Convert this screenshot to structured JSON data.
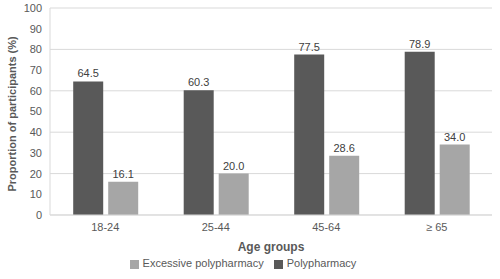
{
  "chart_data": {
    "type": "bar",
    "x_label": "Age groups",
    "y_label": "Proportion of participants (%)",
    "categories": [
      "18-24",
      "25-44",
      "45-64",
      "≥ 65"
    ],
    "series": [
      {
        "name": "Polypharmacy",
        "color": "#595959",
        "values": [
          64.5,
          60.3,
          77.5,
          78.9
        ]
      },
      {
        "name": "Excessive polypharmacy",
        "color": "#a6a6a6",
        "values": [
          16.1,
          20,
          28.6,
          34
        ],
        "value_labels": [
          "16.1",
          "20.0",
          "28.6",
          "34.0"
        ]
      }
    ],
    "ylim": [
      0,
      100
    ],
    "yticks": [
      0,
      10,
      20,
      30,
      40,
      50,
      60,
      70,
      80,
      90,
      100
    ],
    "grid": true,
    "legend": "bottom",
    "data_labels": true
  }
}
